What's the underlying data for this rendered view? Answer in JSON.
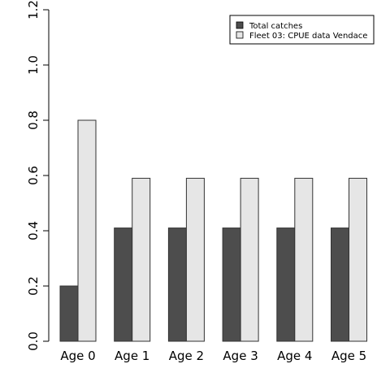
{
  "chart_data": {
    "type": "bar",
    "categories": [
      "Age 0",
      "Age 1",
      "Age 2",
      "Age 3",
      "Age 4",
      "Age 5"
    ],
    "series": [
      {
        "name": "Total catches",
        "color": "#4d4d4d",
        "values": [
          0.2,
          0.41,
          0.41,
          0.41,
          0.41,
          0.41
        ]
      },
      {
        "name": "Fleet 03:  CPUE data Vendace",
        "color": "#e6e6e6",
        "values": [
          0.8,
          0.59,
          0.59,
          0.59,
          0.59,
          0.59
        ]
      }
    ],
    "ylim": [
      0,
      1.2
    ],
    "yticks": [
      "0.0",
      "0.2",
      "0.4",
      "0.6",
      "0.8",
      "1.0",
      "1.2"
    ],
    "legend_position": "top-right",
    "grid": false
  }
}
